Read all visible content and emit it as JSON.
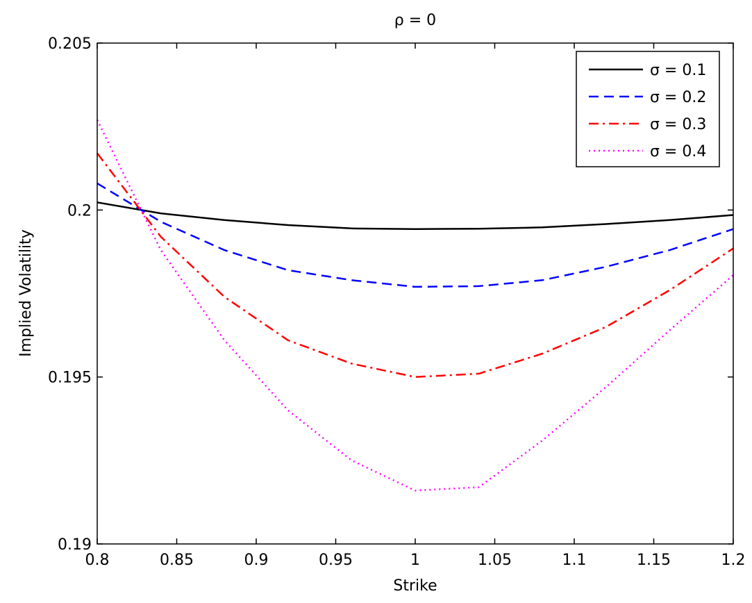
{
  "chart_data": {
    "type": "line",
    "title": "ρ = 0",
    "xlabel": "Strike",
    "ylabel": "Implied Volatility",
    "xlim": [
      0.8,
      1.2
    ],
    "ylim": [
      0.19,
      0.205
    ],
    "xticks": [
      0.8,
      0.85,
      0.9,
      0.95,
      1,
      1.05,
      1.1,
      1.15,
      1.2
    ],
    "xtick_labels": [
      "0.8",
      "0.85",
      "0.9",
      "0.95",
      "1",
      "1.05",
      "1.1",
      "1.15",
      "1.2"
    ],
    "yticks": [
      0.19,
      0.195,
      0.2,
      0.205
    ],
    "ytick_labels": [
      "0.19",
      "0.195",
      "0.2",
      "0.205"
    ],
    "grid": false,
    "legend_position": "top-right",
    "x": [
      0.8,
      0.84,
      0.88,
      0.92,
      0.96,
      1.0,
      1.04,
      1.08,
      1.12,
      1.16,
      1.2
    ],
    "series": [
      {
        "name": "σ = 0.1",
        "color": "#000000",
        "style": "solid",
        "values": [
          0.20023,
          0.1999,
          0.1997,
          0.19955,
          0.19945,
          0.19943,
          0.19944,
          0.19948,
          0.19958,
          0.1997,
          0.19985
        ]
      },
      {
        "name": "σ = 0.2",
        "color": "#0000ff",
        "style": "dashed",
        "values": [
          0.2008,
          0.19965,
          0.1988,
          0.1982,
          0.1979,
          0.1977,
          0.19772,
          0.1979,
          0.1983,
          0.1988,
          0.19943
        ]
      },
      {
        "name": "σ = 0.3",
        "color": "#ff0000",
        "style": "dashdot",
        "values": [
          0.2017,
          0.1992,
          0.1974,
          0.1961,
          0.1954,
          0.195,
          0.1951,
          0.1957,
          0.1965,
          0.1976,
          0.19885
        ]
      },
      {
        "name": "σ = 0.4",
        "color": "#ff00ff",
        "style": "dotted",
        "values": [
          0.2027,
          0.1988,
          0.1961,
          0.194,
          0.1925,
          0.1916,
          0.1917,
          0.1931,
          0.1947,
          0.1964,
          0.19805
        ]
      }
    ]
  }
}
